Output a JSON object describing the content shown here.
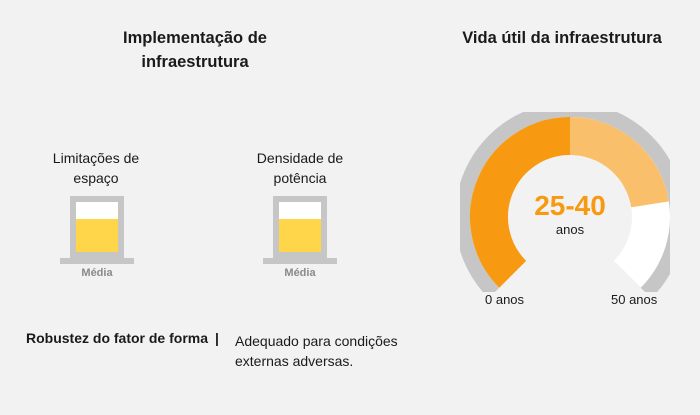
{
  "implementation": {
    "title": "Implementação de infraestrutura",
    "space": {
      "label": "Limitações de espaço",
      "value": "Média",
      "level": 0.66
    },
    "power": {
      "label": "Densidade de potência",
      "value": "Média",
      "level": 0.66
    }
  },
  "robustness": {
    "label": "Robustez do fator de forma",
    "separator": "|",
    "description": "Adequado para condições externas adversas."
  },
  "lifespan": {
    "title": "Vida útil da infraestrutura",
    "range_text": "25-40",
    "unit": "anos",
    "min_label": "0 anos",
    "max_label": "50 anos",
    "scale_max": 50,
    "range_start": 25,
    "range_end": 40,
    "colors": {
      "filled": "#f79a12",
      "range": "#f9bf6a",
      "empty": "#ffffff",
      "track": "#c6c6c6",
      "value_text": "#f79a12"
    }
  }
}
